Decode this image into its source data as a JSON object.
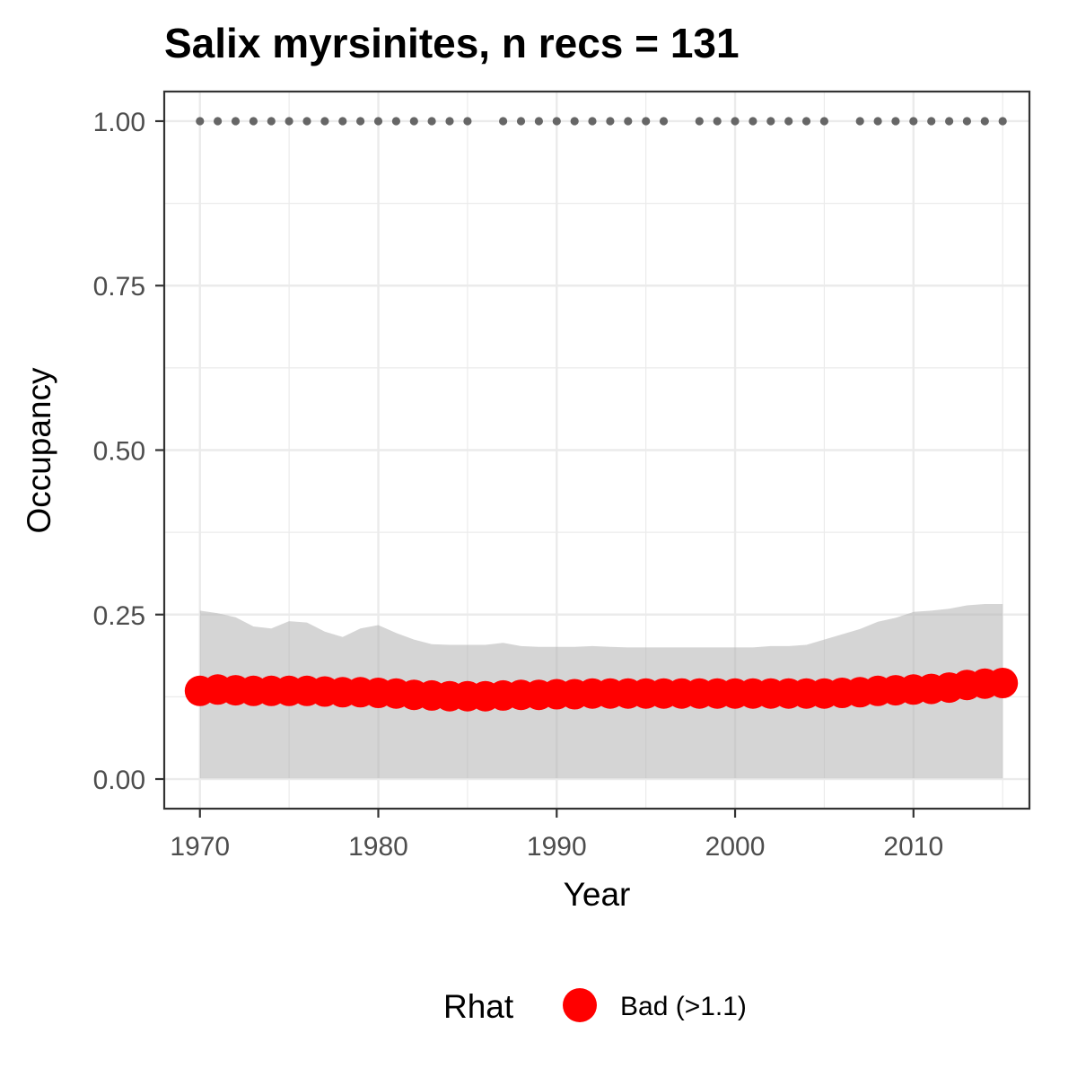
{
  "chart_data": {
    "type": "line",
    "title": "Salix myrsinites, n recs = 131",
    "xlabel": "Year",
    "ylabel": "Occupancy",
    "xlim": [
      1968,
      2016.5
    ],
    "ylim": [
      -0.045,
      1.045
    ],
    "xticks": [
      1970,
      1980,
      1990,
      2000,
      2010
    ],
    "xtick_labels": [
      "1970",
      "1980",
      "1990",
      "2000",
      "2010"
    ],
    "yticks": [
      0,
      0.25,
      0.5,
      0.75,
      1.0
    ],
    "ytick_labels": [
      "0.00",
      "0.25",
      "0.50",
      "0.75",
      "1.00"
    ],
    "grid": true,
    "legend": {
      "title": "Rhat",
      "position": "bottom",
      "entries": [
        {
          "label": "Bad (>1.1)",
          "color": "#ff0000"
        }
      ]
    },
    "series": [
      {
        "name": "Bad (>1.1)",
        "color": "#ff0000",
        "x": [
          1970,
          1971,
          1972,
          1973,
          1974,
          1975,
          1976,
          1977,
          1978,
          1979,
          1980,
          1981,
          1982,
          1983,
          1984,
          1985,
          1986,
          1987,
          1988,
          1989,
          1990,
          1991,
          1992,
          1993,
          1994,
          1995,
          1996,
          1997,
          1998,
          1999,
          2000,
          2001,
          2002,
          2003,
          2004,
          2005,
          2006,
          2007,
          2008,
          2009,
          2010,
          2011,
          2012,
          2013,
          2014,
          2015
        ],
        "y": [
          0.134,
          0.136,
          0.135,
          0.134,
          0.134,
          0.134,
          0.134,
          0.133,
          0.132,
          0.132,
          0.131,
          0.13,
          0.128,
          0.127,
          0.126,
          0.126,
          0.126,
          0.127,
          0.128,
          0.128,
          0.129,
          0.129,
          0.13,
          0.13,
          0.13,
          0.13,
          0.13,
          0.13,
          0.13,
          0.13,
          0.13,
          0.13,
          0.13,
          0.13,
          0.13,
          0.13,
          0.131,
          0.132,
          0.134,
          0.135,
          0.136,
          0.137,
          0.139,
          0.143,
          0.145,
          0.146
        ],
        "lower": [
          0.001,
          0.001,
          0.001,
          0.001,
          0.001,
          0.001,
          0.001,
          0.001,
          0.001,
          0.001,
          0.001,
          0.001,
          0.001,
          0.001,
          0.001,
          0.001,
          0.001,
          0.001,
          0.001,
          0.001,
          0.001,
          0.001,
          0.001,
          0.001,
          0.001,
          0.001,
          0.001,
          0.001,
          0.001,
          0.001,
          0.001,
          0.001,
          0.001,
          0.001,
          0.001,
          0.001,
          0.001,
          0.001,
          0.001,
          0.001,
          0.001,
          0.001,
          0.001,
          0.001,
          0.001,
          0.001
        ],
        "upper": [
          0.256,
          0.252,
          0.246,
          0.232,
          0.229,
          0.24,
          0.238,
          0.224,
          0.216,
          0.229,
          0.234,
          0.222,
          0.212,
          0.205,
          0.204,
          0.204,
          0.204,
          0.207,
          0.202,
          0.201,
          0.201,
          0.201,
          0.202,
          0.201,
          0.2,
          0.2,
          0.2,
          0.2,
          0.2,
          0.2,
          0.2,
          0.2,
          0.202,
          0.202,
          0.204,
          0.212,
          0.22,
          0.228,
          0.239,
          0.245,
          0.254,
          0.256,
          0.259,
          0.264,
          0.266,
          0.266
        ]
      },
      {
        "name": "",
        "color": "#666666",
        "x": [
          1970,
          1971,
          1972,
          1973,
          1974,
          1975,
          1976,
          1977,
          1978,
          1979,
          1980,
          1981,
          1982,
          1983,
          1984,
          1985,
          1987,
          1988,
          1989,
          1990,
          1991,
          1992,
          1993,
          1994,
          1995,
          1996,
          1998,
          1999,
          2000,
          2001,
          2002,
          2003,
          2004,
          2005,
          2007,
          2008,
          2009,
          2010,
          2011,
          2012,
          2013,
          2014,
          2015
        ],
        "y": [
          1,
          1,
          1,
          1,
          1,
          1,
          1,
          1,
          1,
          1,
          1,
          1,
          1,
          1,
          1,
          1,
          1,
          1,
          1,
          1,
          1,
          1,
          1,
          1,
          1,
          1,
          1,
          1,
          1,
          1,
          1,
          1,
          1,
          1,
          1,
          1,
          1,
          1,
          1,
          1,
          1,
          1,
          1
        ]
      }
    ]
  }
}
